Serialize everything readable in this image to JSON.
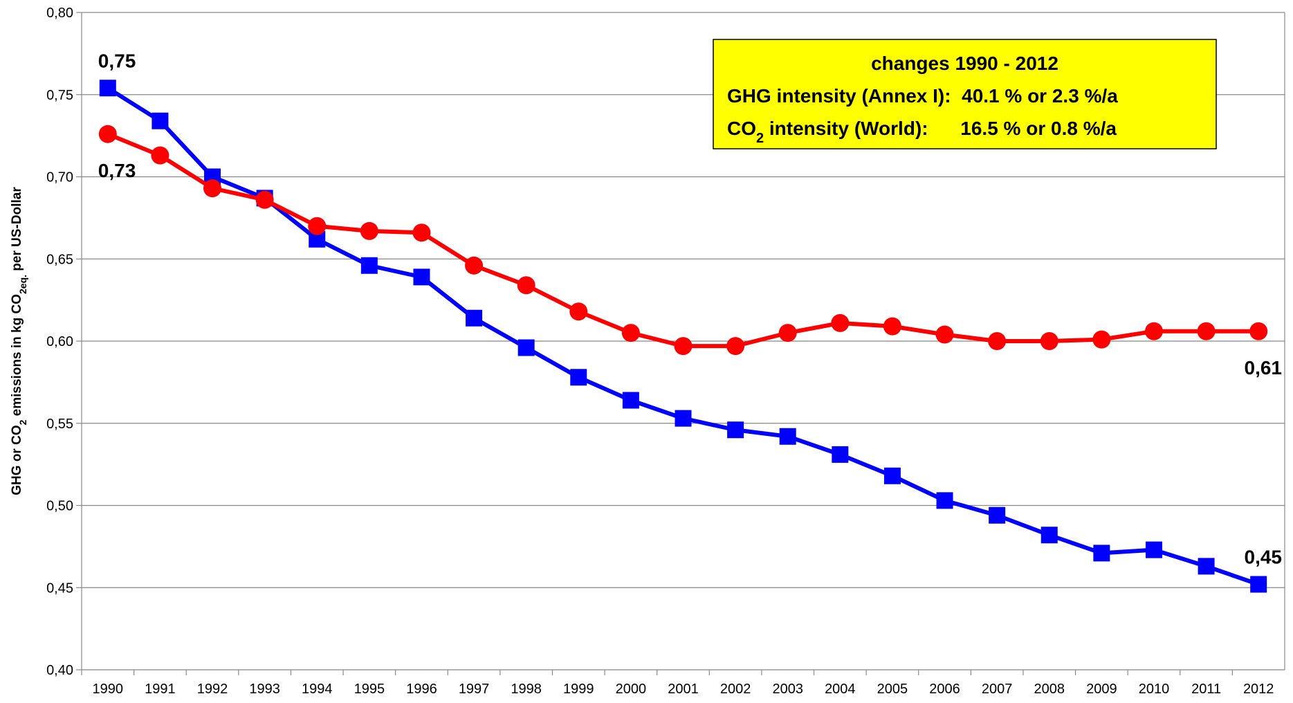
{
  "chart_data": {
    "type": "line",
    "ylabel": [
      "GHG or CO",
      "2",
      " emissions in kg CO",
      "2eq.",
      " per US-Dollar"
    ],
    "annotation": [
      [
        "changes 1990 - 2012"
      ],
      [
        "GHG intensity (Annex I):  40.1 % or 2.3 %/a"
      ],
      [
        "CO",
        "2",
        " intensity (World):      16.5 % or 0.8 %/a"
      ]
    ],
    "categories": [
      "1990",
      "1991",
      "1992",
      "1993",
      "1994",
      "1995",
      "1996",
      "1997",
      "1998",
      "1999",
      "2000",
      "2001",
      "2002",
      "2003",
      "2004",
      "2005",
      "2006",
      "2007",
      "2008",
      "2009",
      "2010",
      "2011",
      "2012"
    ],
    "series": [
      {
        "color": "#0000ff",
        "marker": "square",
        "values": [
          0.754,
          0.734,
          0.7,
          0.687,
          0.662,
          0.646,
          0.639,
          0.614,
          0.596,
          0.578,
          0.564,
          0.553,
          0.546,
          0.542,
          0.531,
          0.518,
          0.503,
          0.494,
          0.482,
          0.471,
          0.473,
          0.463,
          0.452
        ],
        "value_labels": [
          "0,75",
          null,
          null,
          null,
          null,
          null,
          null,
          null,
          null,
          null,
          null,
          null,
          null,
          null,
          null,
          null,
          null,
          null,
          null,
          null,
          null,
          null,
          "0,45"
        ]
      },
      {
        "color": "#ff0000",
        "marker": "circle",
        "values": [
          0.726,
          0.713,
          0.693,
          0.686,
          0.67,
          0.667,
          0.666,
          0.646,
          0.634,
          0.618,
          0.605,
          0.597,
          0.597,
          0.605,
          0.611,
          0.609,
          0.604,
          0.6,
          0.6,
          0.601,
          0.606,
          0.606,
          0.606
        ],
        "value_labels": [
          "0,73",
          null,
          null,
          null,
          null,
          null,
          null,
          null,
          null,
          null,
          null,
          null,
          null,
          null,
          null,
          null,
          null,
          null,
          null,
          null,
          null,
          null,
          "0,61"
        ]
      }
    ],
    "ylim": [
      0.4,
      0.8
    ],
    "yticks": [
      {
        "value": 0.4,
        "label": "0,40"
      },
      {
        "value": 0.45,
        "label": "0,45"
      },
      {
        "value": 0.5,
        "label": "0,50"
      },
      {
        "value": 0.55,
        "label": "0,55"
      },
      {
        "value": 0.6,
        "label": "0,60"
      },
      {
        "value": 0.65,
        "label": "0,65"
      },
      {
        "value": 0.7,
        "label": "0,70"
      },
      {
        "value": 0.75,
        "label": "0,75"
      },
      {
        "value": 0.8,
        "label": "0,80"
      }
    ],
    "grid": true
  }
}
